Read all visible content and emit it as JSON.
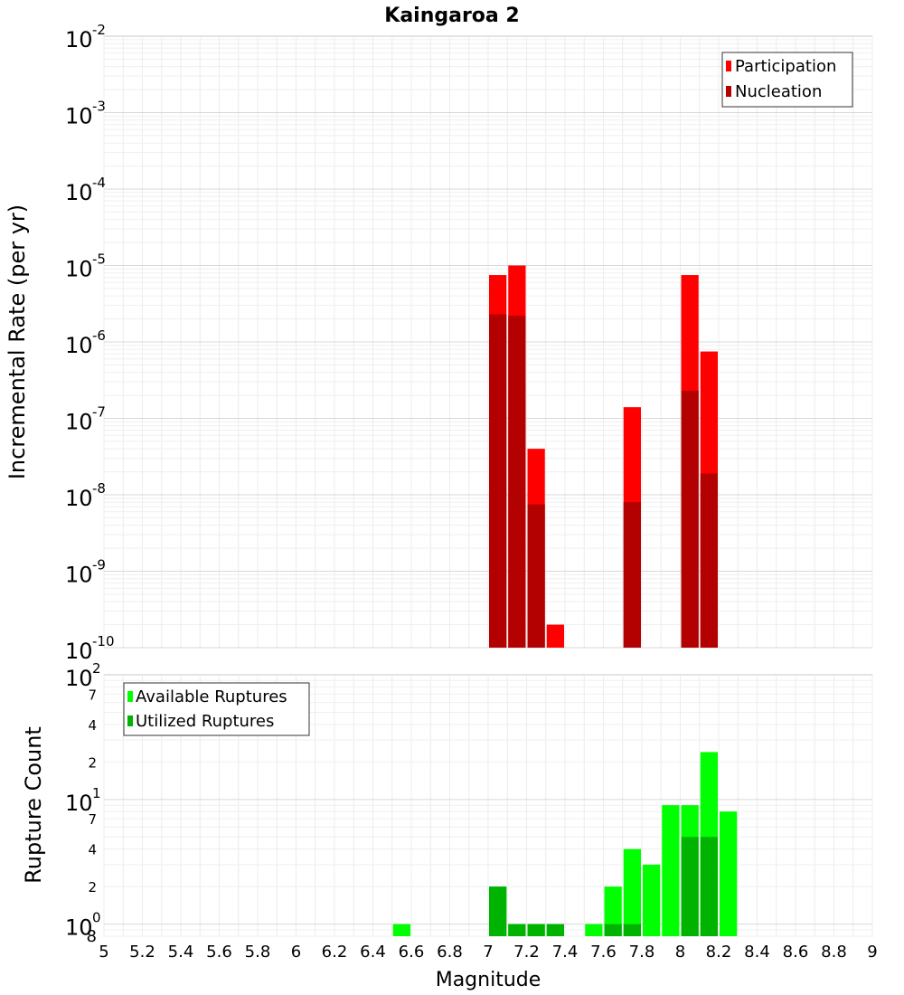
{
  "chart_data": [
    {
      "type": "bar",
      "title": "Kaingaroa 2",
      "xlabel": "Magnitude",
      "ylabel": "Incremental Rate (per yr)",
      "yscale": "log",
      "ylim": [
        1e-10,
        0.01
      ],
      "xlim": [
        5,
        9
      ],
      "bin_width": 0.1,
      "legend_position": "top-right",
      "series": [
        {
          "name": "Participation",
          "color": "#ff0000",
          "x": [
            7.05,
            7.15,
            7.25,
            7.35,
            7.75,
            8.05,
            8.15
          ],
          "values": [
            7.5e-06,
            1e-05,
            4e-08,
            2e-10,
            1.4e-07,
            7.5e-06,
            7.5e-07
          ]
        },
        {
          "name": "Nucleation",
          "color": "#b30000",
          "x": [
            7.05,
            7.15,
            7.25,
            7.75,
            8.05,
            8.15
          ],
          "values": [
            2.3e-06,
            2.2e-06,
            7.5e-09,
            8e-09,
            2.3e-07,
            1.9e-08
          ]
        }
      ]
    },
    {
      "type": "bar",
      "xlabel": "Magnitude",
      "ylabel": "Rupture Count",
      "yscale": "log",
      "ylim": [
        0.8,
        100
      ],
      "xlim": [
        5,
        9
      ],
      "bin_width": 0.1,
      "legend_position": "top-left",
      "series": [
        {
          "name": "Available Ruptures",
          "color": "#00ff00",
          "x": [
            6.55,
            7.05,
            7.15,
            7.25,
            7.35,
            7.55,
            7.65,
            7.75,
            7.85,
            7.95,
            8.05,
            8.15,
            8.25
          ],
          "values": [
            1,
            2,
            1,
            1,
            1,
            1,
            2,
            4,
            3,
            9,
            9,
            24,
            8
          ]
        },
        {
          "name": "Utilized Ruptures",
          "color": "#00b300",
          "x": [
            7.05,
            7.15,
            7.25,
            7.35,
            7.65,
            7.75,
            8.05,
            8.15
          ],
          "values": [
            2,
            1,
            1,
            1,
            1,
            1,
            5,
            5
          ]
        }
      ]
    }
  ],
  "axis_ticks": {
    "x": [
      "5",
      "5.2",
      "5.4",
      "5.6",
      "5.8",
      "6",
      "6.2",
      "6.4",
      "6.6",
      "6.8",
      "7",
      "7.2",
      "7.4",
      "7.6",
      "7.8",
      "8",
      "8.2",
      "8.4",
      "8.6",
      "8.8",
      "9"
    ],
    "top_decades": [
      {
        "base": "10",
        "exp": "-2"
      },
      {
        "base": "10",
        "exp": "-3"
      },
      {
        "base": "10",
        "exp": "-4"
      },
      {
        "base": "10",
        "exp": "-5"
      },
      {
        "base": "10",
        "exp": "-6"
      },
      {
        "base": "10",
        "exp": "-7"
      },
      {
        "base": "10",
        "exp": "-8"
      },
      {
        "base": "10",
        "exp": "-9"
      },
      {
        "base": "10",
        "exp": "-10"
      }
    ],
    "bottom_decades": [
      {
        "base": "10",
        "exp": "2"
      },
      {
        "base": "10",
        "exp": "1"
      },
      {
        "base": "10",
        "exp": "0"
      }
    ],
    "bottom_minor": [
      "7",
      "4",
      "2",
      "7",
      "4",
      "2",
      "8"
    ]
  }
}
